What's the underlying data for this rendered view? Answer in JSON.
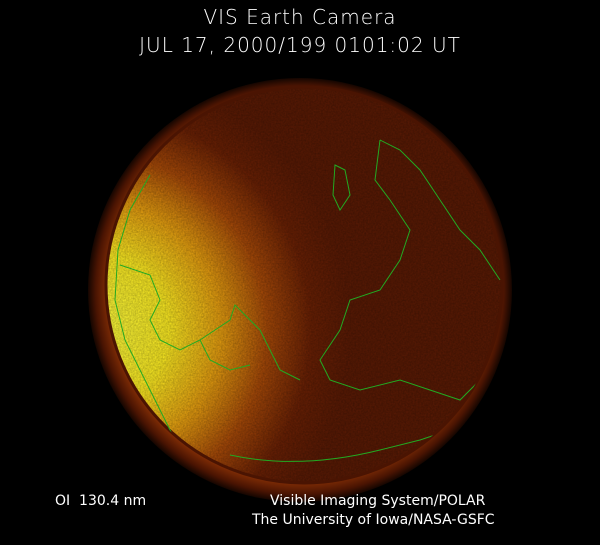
{
  "header": {
    "title": "VIS Earth Camera",
    "timestamp": "JUL 17, 2000/199 0101:02 UT"
  },
  "footer": {
    "wavelength": "OI  130.4 nm",
    "instrument": "Visible Imaging System/POLAR",
    "credit": "The University of Iowa/NASA-GSFC"
  },
  "colors": {
    "background": "#000000",
    "dayside": "#ffee22",
    "nightside": "#5a1a04",
    "coastline": "#22aa22",
    "text": "#ffffff"
  }
}
